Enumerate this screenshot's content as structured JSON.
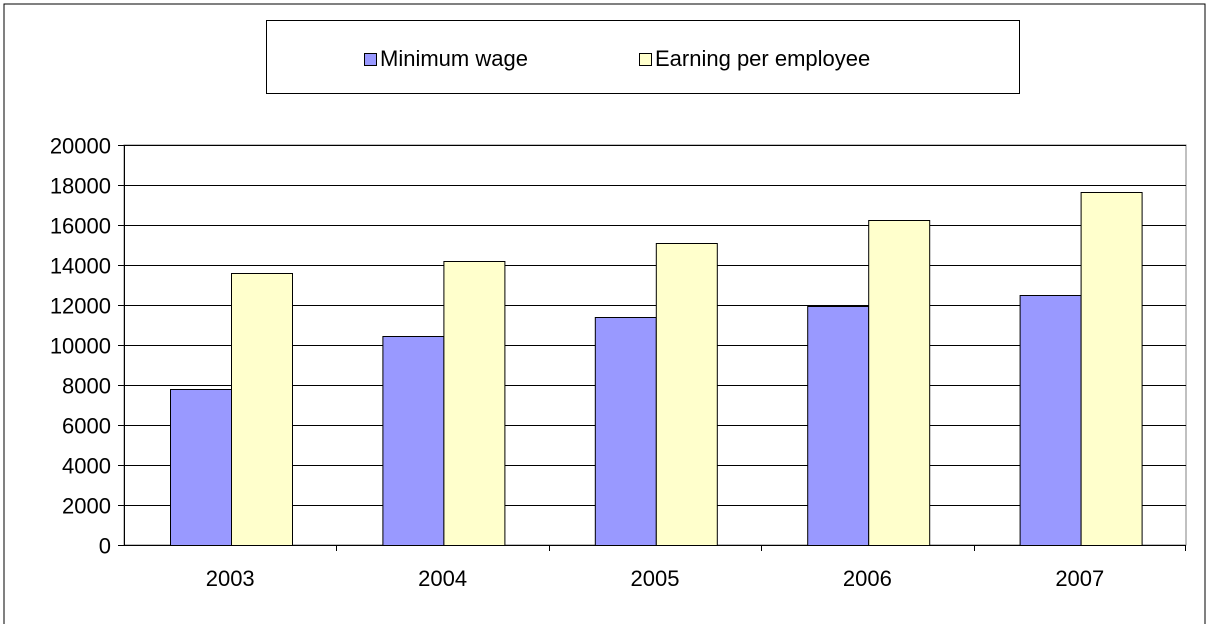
{
  "chart_data": {
    "type": "bar",
    "categories": [
      "2003",
      "2004",
      "2005",
      "2006",
      "2007"
    ],
    "series": [
      {
        "name": "Minimum wage",
        "values": [
          7800,
          10450,
          11400,
          11950,
          12500
        ],
        "color": "#9999ff"
      },
      {
        "name": "Earning per employee",
        "values": [
          13600,
          14200,
          15100,
          16250,
          17650
        ],
        "color": "#ffffcc"
      }
    ],
    "y_ticks": [
      "0",
      "2000",
      "4000",
      "6000",
      "8000",
      "10000",
      "12000",
      "14000",
      "16000",
      "18000",
      "20000"
    ],
    "ylim": [
      0,
      20000
    ],
    "grid": true,
    "legend_position": "top",
    "title": "",
    "xlabel": "",
    "ylabel": ""
  }
}
